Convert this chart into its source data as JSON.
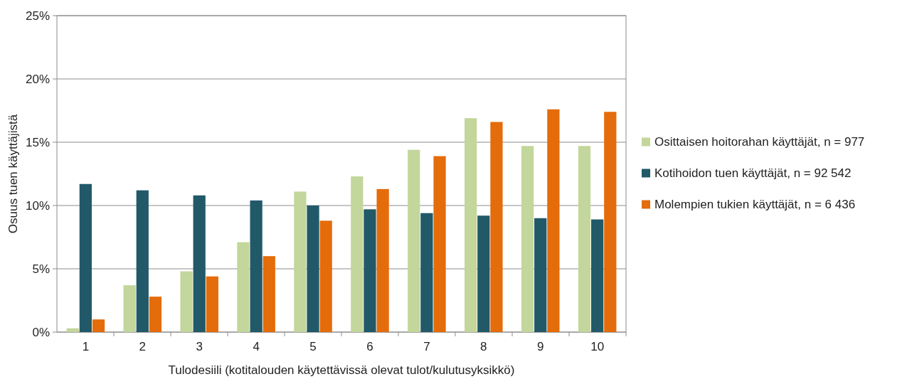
{
  "chart_data": {
    "type": "bar",
    "xlabel": "Tulodesiili (kotitalouden käytettävissä olevat tulot/kulutusyksikkö)",
    "ylabel": "Osuus tuen käyttäjistä",
    "categories": [
      "1",
      "2",
      "3",
      "4",
      "5",
      "6",
      "7",
      "8",
      "9",
      "10"
    ],
    "series": [
      {
        "name": "Osittaisen hoitorahan käyttäjät, n = 977",
        "color": "#c3d69b",
        "values": [
          0.3,
          3.7,
          4.8,
          7.1,
          11.1,
          12.3,
          14.4,
          16.9,
          14.7,
          14.7
        ]
      },
      {
        "name": "Kotihoidon tuen käyttäjät, n = 92 542",
        "color": "#215968",
        "values": [
          11.7,
          11.2,
          10.8,
          10.4,
          10.0,
          9.7,
          9.4,
          9.2,
          9.0,
          8.9
        ]
      },
      {
        "name": "Molempien tukien käyttäjät, n = 6 436",
        "color": "#e46c0a",
        "values": [
          1.0,
          2.8,
          4.4,
          6.0,
          8.8,
          11.3,
          13.9,
          16.6,
          17.6,
          17.4
        ]
      }
    ],
    "ylim": [
      0,
      25
    ],
    "yticks": [
      {
        "value": 0,
        "label": "0%"
      },
      {
        "value": 5,
        "label": "5%"
      },
      {
        "value": 10,
        "label": "10%"
      },
      {
        "value": 15,
        "label": "15%"
      },
      {
        "value": 20,
        "label": "20%"
      },
      {
        "value": 25,
        "label": "25%"
      }
    ],
    "grid": "y",
    "legend": "right"
  }
}
